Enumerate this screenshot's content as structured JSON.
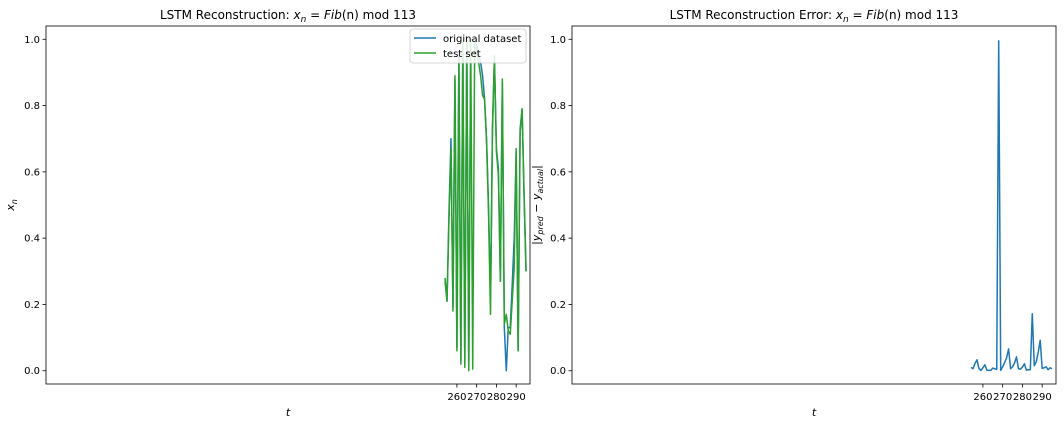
{
  "chart_data": [
    {
      "type": "line",
      "title": "LSTM Reconstruction: x_n = Fib(n) mod 113",
      "title_parts": {
        "prefix": "LSTM Reconstruction: ",
        "math_lhs": "x",
        "math_sub": "n",
        "math_eq": " = ",
        "math_fn": "Fib",
        "math_arg": "(n)",
        "suffix": " mod 113"
      },
      "xlabel": "t",
      "ylabel": "x_n",
      "ylabel_parts": {
        "base": "x",
        "sub": "n"
      },
      "xlim": [
        52,
        297
      ],
      "ylim": [
        -0.04,
        1.04
      ],
      "xticks": [
        260,
        270,
        280,
        290
      ],
      "yticks": [
        0.0,
        0.2,
        0.4,
        0.6,
        0.8,
        1.0
      ],
      "ytick_labels": [
        "0.0",
        "0.2",
        "0.4",
        "0.6",
        "0.8",
        "1.0"
      ],
      "grid": false,
      "legend": "top-right",
      "x": [
        254,
        255,
        256,
        257,
        258,
        259,
        260,
        261,
        262,
        263,
        264,
        265,
        266,
        267,
        268,
        269,
        270,
        271,
        272,
        273,
        274,
        275,
        276,
        277,
        278,
        279,
        280,
        281,
        282,
        283,
        284,
        285,
        286,
        287,
        288,
        289,
        290,
        291,
        292,
        293,
        294,
        295
      ],
      "series": [
        {
          "name": "original dataset",
          "color": "#1f77b4",
          "values": [
            0.27,
            0.21,
            0.48,
            0.7,
            0.19,
            0.88,
            0.07,
            0.96,
            0.03,
            0.99,
            0.02,
            1.0,
            0.005,
            1.0,
            1.0,
            0.99,
            0.98,
            0.96,
            0.93,
            0.89,
            0.82,
            0.7,
            0.5,
            0.22,
            0.74,
            0.94,
            0.67,
            0.61,
            0.27,
            0.87,
            0.13,
            0.0,
            0.13,
            0.13,
            0.26,
            0.4,
            0.66,
            0.06,
            0.73,
            0.79,
            0.53,
            0.3
          ]
        },
        {
          "name": "test set",
          "color": "#2ca02c",
          "values": [
            0.28,
            0.21,
            0.46,
            0.67,
            0.18,
            0.89,
            0.06,
            0.94,
            0.02,
            0.99,
            0.01,
            1.0,
            0.0,
            1.0,
            0.005,
            0.99,
            0.96,
            0.93,
            0.89,
            0.83,
            0.82,
            0.69,
            0.48,
            0.17,
            0.72,
            0.95,
            0.66,
            0.59,
            0.27,
            0.88,
            0.14,
            0.17,
            0.12,
            0.11,
            0.21,
            0.31,
            0.67,
            0.06,
            0.72,
            0.79,
            0.53,
            0.3
          ]
        }
      ]
    },
    {
      "type": "line",
      "title": "LSTM Reconstruction Error: x_n = Fib(n) mod 113",
      "title_parts": {
        "prefix": "LSTM Reconstruction Error: ",
        "math_lhs": "x",
        "math_sub": "n",
        "math_eq": " = ",
        "math_fn": "Fib",
        "math_arg": "(n)",
        "suffix": " mod 113"
      },
      "xlabel": "t",
      "ylabel": "|y_pred − y_actual|",
      "ylabel_parts": {
        "bar": "|",
        "base1": "y",
        "sub1": "pred",
        "minus": " − ",
        "base2": "y",
        "sub2": "actual"
      },
      "xlim": [
        52,
        297
      ],
      "ylim": [
        -0.04,
        1.04
      ],
      "xticks": [
        260,
        270,
        280,
        290
      ],
      "yticks": [
        0.0,
        0.2,
        0.4,
        0.6,
        0.8,
        1.0
      ],
      "ytick_labels": [
        "0.0",
        "0.2",
        "0.4",
        "0.6",
        "0.8",
        "1.0"
      ],
      "grid": false,
      "x": [
        254,
        255,
        256,
        257,
        258,
        259,
        260,
        261,
        262,
        263,
        264,
        265,
        266,
        267,
        268,
        269,
        270,
        271,
        272,
        273,
        274,
        275,
        276,
        277,
        278,
        279,
        280,
        281,
        282,
        283,
        284,
        285,
        286,
        287,
        288,
        289,
        290,
        291,
        292,
        293,
        294,
        295
      ],
      "series": [
        {
          "name": "",
          "color": "#1f77b4",
          "values": [
            0.01,
            0.006,
            0.022,
            0.033,
            0.007,
            0.001,
            0.009,
            0.018,
            0.002,
            0.001,
            0.001,
            0.008,
            0.006,
            0.004,
            0.995,
            0.001,
            0.012,
            0.025,
            0.039,
            0.066,
            0.006,
            0.012,
            0.023,
            0.042,
            0.006,
            0.005,
            0.011,
            0.021,
            0.002,
            0.003,
            0.003,
            0.172,
            0.015,
            0.027,
            0.055,
            0.092,
            0.007,
            0.009,
            0.012,
            0.003,
            0.009,
            0.006
          ]
        }
      ]
    }
  ]
}
